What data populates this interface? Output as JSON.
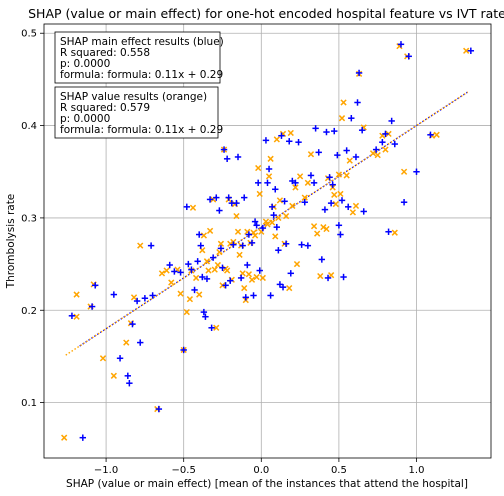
{
  "chart_data": {
    "type": "scatter",
    "title": "SHAP (value or main effect) for one-hot encoded hospital feature vs IVT rate",
    "xlabel": "SHAP (value or main effect) [mean of the instances that attend the hospital]",
    "ylabel": "Thrombolysis rate",
    "xlim": [
      -1.4,
      1.48
    ],
    "ylim": [
      0.04,
      0.51
    ],
    "xticks": [
      -1.0,
      -0.5,
      0.0,
      0.5,
      1.0
    ],
    "xtick_labels": [
      "−1.0",
      "−0.5",
      "0.0",
      "0.5",
      "1.0"
    ],
    "yticks": [
      0.1,
      0.2,
      0.3,
      0.4,
      0.5
    ],
    "ytick_labels": [
      "0.1",
      "0.2",
      "0.3",
      "0.4",
      "0.5"
    ],
    "grid": true,
    "series": [
      {
        "color": "#0000ff",
        "marker": "+",
        "trend": {
          "slope": 0.11,
          "intercept": 0.29,
          "x_range": [
            -1.17,
            1.33
          ],
          "style": "dotted"
        },
        "points": [
          [
            -1.22,
            0.194
          ],
          [
            -1.15,
            0.062
          ],
          [
            -1.09,
            0.204
          ],
          [
            -1.07,
            0.227
          ],
          [
            -0.95,
            0.217
          ],
          [
            -0.91,
            0.148
          ],
          [
            -0.86,
            0.129
          ],
          [
            -0.85,
            0.121
          ],
          [
            -0.83,
            0.185
          ],
          [
            -0.8,
            0.21
          ],
          [
            -0.78,
            0.165
          ],
          [
            -0.75,
            0.213
          ],
          [
            -0.71,
            0.27
          ],
          [
            -0.7,
            0.216
          ],
          [
            -0.66,
            0.093
          ],
          [
            -0.59,
            0.249
          ],
          [
            -0.56,
            0.242
          ],
          [
            -0.52,
            0.241
          ],
          [
            -0.5,
            0.157
          ],
          [
            -0.48,
            0.312
          ],
          [
            -0.47,
            0.25
          ],
          [
            -0.45,
            0.244
          ],
          [
            -0.43,
            0.222
          ],
          [
            -0.41,
            0.253
          ],
          [
            -0.4,
            0.282
          ],
          [
            -0.39,
            0.27
          ],
          [
            -0.38,
            0.236
          ],
          [
            -0.37,
            0.198
          ],
          [
            -0.36,
            0.193
          ],
          [
            -0.35,
            0.234
          ],
          [
            -0.33,
            0.32
          ],
          [
            -0.32,
            0.181
          ],
          [
            -0.31,
            0.257
          ],
          [
            -0.29,
            0.322
          ],
          [
            -0.27,
            0.308
          ],
          [
            -0.26,
            0.267
          ],
          [
            -0.25,
            0.246
          ],
          [
            -0.24,
            0.374
          ],
          [
            -0.23,
            0.227
          ],
          [
            -0.22,
            0.364
          ],
          [
            -0.21,
            0.322
          ],
          [
            -0.2,
            0.232
          ],
          [
            -0.19,
            0.316
          ],
          [
            -0.18,
            0.271
          ],
          [
            -0.16,
            0.316
          ],
          [
            -0.15,
            0.366
          ],
          [
            -0.13,
            0.235
          ],
          [
            -0.12,
            0.27
          ],
          [
            -0.11,
            0.322
          ],
          [
            -0.1,
            0.214
          ],
          [
            -0.09,
            0.249
          ],
          [
            -0.08,
            0.282
          ],
          [
            -0.06,
            0.273
          ],
          [
            -0.05,
            0.216
          ],
          [
            -0.04,
            0.296
          ],
          [
            -0.03,
            0.292
          ],
          [
            -0.02,
            0.338
          ],
          [
            -0.01,
            0.243
          ],
          [
            0.01,
            0.289
          ],
          [
            0.03,
            0.384
          ],
          [
            0.04,
            0.338
          ],
          [
            0.05,
            0.353
          ],
          [
            0.06,
            0.216
          ],
          [
            0.07,
            0.312
          ],
          [
            0.08,
            0.303
          ],
          [
            0.09,
            0.331
          ],
          [
            0.1,
            0.29
          ],
          [
            0.11,
            0.265
          ],
          [
            0.12,
            0.228
          ],
          [
            0.13,
            0.389
          ],
          [
            0.14,
            0.225
          ],
          [
            0.15,
            0.318
          ],
          [
            0.16,
            0.272
          ],
          [
            0.18,
            0.383
          ],
          [
            0.19,
            0.24
          ],
          [
            0.2,
            0.34
          ],
          [
            0.22,
            0.338
          ],
          [
            0.24,
            0.382
          ],
          [
            0.26,
            0.271
          ],
          [
            0.28,
            0.317
          ],
          [
            0.3,
            0.27
          ],
          [
            0.32,
            0.346
          ],
          [
            0.34,
            0.338
          ],
          [
            0.35,
            0.397
          ],
          [
            0.37,
            0.371
          ],
          [
            0.39,
            0.255
          ],
          [
            0.41,
            0.309
          ],
          [
            0.42,
            0.393
          ],
          [
            0.43,
            0.235
          ],
          [
            0.44,
            0.344
          ],
          [
            0.45,
            0.316
          ],
          [
            0.46,
            0.336
          ],
          [
            0.47,
            0.394
          ],
          [
            0.49,
            0.368
          ],
          [
            0.5,
            0.292
          ],
          [
            0.51,
            0.282
          ],
          [
            0.52,
            0.319
          ],
          [
            0.53,
            0.236
          ],
          [
            0.55,
            0.373
          ],
          [
            0.56,
            0.312
          ],
          [
            0.58,
            0.408
          ],
          [
            0.61,
            0.366
          ],
          [
            0.62,
            0.425
          ],
          [
            0.63,
            0.457
          ],
          [
            0.65,
            0.395
          ],
          [
            0.66,
            0.307
          ],
          [
            0.74,
            0.374
          ],
          [
            0.78,
            0.382
          ],
          [
            0.8,
            0.391
          ],
          [
            0.82,
            0.285
          ],
          [
            0.84,
            0.405
          ],
          [
            0.86,
            0.38
          ],
          [
            0.9,
            0.488
          ],
          [
            0.92,
            0.317
          ],
          [
            0.95,
            0.475
          ],
          [
            1.0,
            0.35
          ],
          [
            1.09,
            0.39
          ],
          [
            1.35,
            0.481
          ]
        ]
      },
      {
        "color": "#ffa500",
        "marker": "x",
        "trend": {
          "slope": 0.11,
          "intercept": 0.29,
          "x_range": [
            -1.26,
            1.33
          ],
          "style": "dotted"
        },
        "points": [
          [
            -1.27,
            0.062
          ],
          [
            -1.19,
            0.217
          ],
          [
            -1.19,
            0.193
          ],
          [
            -1.1,
            0.204
          ],
          [
            -1.08,
            0.228
          ],
          [
            -1.02,
            0.148
          ],
          [
            -0.95,
            0.129
          ],
          [
            -0.87,
            0.165
          ],
          [
            -0.84,
            0.186
          ],
          [
            -0.82,
            0.214
          ],
          [
            -0.78,
            0.27
          ],
          [
            -0.67,
            0.093
          ],
          [
            -0.64,
            0.24
          ],
          [
            -0.61,
            0.243
          ],
          [
            -0.58,
            0.23
          ],
          [
            -0.54,
            0.244
          ],
          [
            -0.52,
            0.218
          ],
          [
            -0.5,
            0.157
          ],
          [
            -0.48,
            0.198
          ],
          [
            -0.46,
            0.212
          ],
          [
            -0.45,
            0.243
          ],
          [
            -0.44,
            0.311
          ],
          [
            -0.42,
            0.235
          ],
          [
            -0.4,
            0.217
          ],
          [
            -0.38,
            0.265
          ],
          [
            -0.37,
            0.281
          ],
          [
            -0.35,
            0.253
          ],
          [
            -0.34,
            0.243
          ],
          [
            -0.33,
            0.286
          ],
          [
            -0.31,
            0.32
          ],
          [
            -0.3,
            0.244
          ],
          [
            -0.29,
            0.181
          ],
          [
            -0.28,
            0.249
          ],
          [
            -0.27,
            0.263
          ],
          [
            -0.26,
            0.272
          ],
          [
            -0.25,
            0.227
          ],
          [
            -0.24,
            0.374
          ],
          [
            -0.23,
            0.245
          ],
          [
            -0.22,
            0.243
          ],
          [
            -0.21,
            0.32
          ],
          [
            -0.2,
            0.272
          ],
          [
            -0.19,
            0.233
          ],
          [
            -0.18,
            0.274
          ],
          [
            -0.17,
            0.315
          ],
          [
            -0.16,
            0.302
          ],
          [
            -0.15,
            0.285
          ],
          [
            -0.14,
            0.26
          ],
          [
            -0.13,
            0.27
          ],
          [
            -0.12,
            0.24
          ],
          [
            -0.11,
            0.224
          ],
          [
            -0.1,
            0.211
          ],
          [
            -0.09,
            0.285
          ],
          [
            -0.08,
            0.239
          ],
          [
            -0.07,
            0.273
          ],
          [
            -0.06,
            0.233
          ],
          [
            -0.05,
            0.284
          ],
          [
            -0.04,
            0.281
          ],
          [
            -0.03,
            0.236
          ],
          [
            -0.02,
            0.354
          ],
          [
            -0.01,
            0.326
          ],
          [
            0.0,
            0.285
          ],
          [
            0.01,
            0.235
          ],
          [
            0.03,
            0.296
          ],
          [
            0.04,
            0.293
          ],
          [
            0.05,
            0.345
          ],
          [
            0.06,
            0.364
          ],
          [
            0.07,
            0.295
          ],
          [
            0.08,
            0.312
          ],
          [
            0.09,
            0.28
          ],
          [
            0.1,
            0.385
          ],
          [
            0.11,
            0.3
          ],
          [
            0.12,
            0.319
          ],
          [
            0.14,
            0.391
          ],
          [
            0.15,
            0.272
          ],
          [
            0.16,
            0.302
          ],
          [
            0.18,
            0.224
          ],
          [
            0.19,
            0.392
          ],
          [
            0.2,
            0.313
          ],
          [
            0.22,
            0.333
          ],
          [
            0.23,
            0.25
          ],
          [
            0.25,
            0.345
          ],
          [
            0.28,
            0.322
          ],
          [
            0.3,
            0.338
          ],
          [
            0.32,
            0.369
          ],
          [
            0.34,
            0.291
          ],
          [
            0.36,
            0.283
          ],
          [
            0.38,
            0.237
          ],
          [
            0.4,
            0.29
          ],
          [
            0.42,
            0.288
          ],
          [
            0.43,
            0.343
          ],
          [
            0.45,
            0.238
          ],
          [
            0.46,
            0.333
          ],
          [
            0.47,
            0.325
          ],
          [
            0.48,
            0.315
          ],
          [
            0.5,
            0.347
          ],
          [
            0.51,
            0.326
          ],
          [
            0.52,
            0.408
          ],
          [
            0.53,
            0.425
          ],
          [
            0.55,
            0.346
          ],
          [
            0.57,
            0.362
          ],
          [
            0.59,
            0.306
          ],
          [
            0.61,
            0.313
          ],
          [
            0.63,
            0.456
          ],
          [
            0.66,
            0.398
          ],
          [
            0.72,
            0.37
          ],
          [
            0.75,
            0.368
          ],
          [
            0.78,
            0.389
          ],
          [
            0.8,
            0.374
          ],
          [
            0.82,
            0.391
          ],
          [
            0.86,
            0.284
          ],
          [
            0.89,
            0.486
          ],
          [
            0.92,
            0.35
          ],
          [
            0.94,
            0.475
          ],
          [
            1.1,
            0.389
          ],
          [
            1.13,
            0.39
          ],
          [
            1.32,
            0.481
          ]
        ]
      }
    ],
    "annotations": [
      {
        "lines": [
          "SHAP main effect results (blue)",
          "R squared: 0.558",
          "p: 0.0000",
          "formula: formula: 0.11x + 0.29"
        ]
      },
      {
        "lines": [
          "SHAP value results (orange)",
          "R squared: 0.579",
          "p: 0.0000",
          "formula: formula: 0.11x + 0.29"
        ]
      }
    ]
  }
}
